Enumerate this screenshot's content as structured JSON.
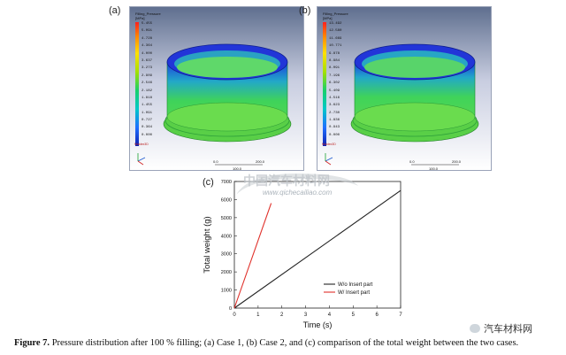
{
  "panels": [
    {
      "label": "(a)",
      "legend_title": "Filling_Pressure",
      "legend_unit": "[MPa]",
      "ticks": [
        "5.455",
        "5.091",
        "4.728",
        "4.364",
        "4.000",
        "3.637",
        "3.273",
        "2.909",
        "2.546",
        "2.182",
        "1.818",
        "1.455",
        "1.091",
        "0.727",
        "0.364",
        "0.000"
      ],
      "scale_left": "0.0",
      "scale_right": "200.0",
      "scale_mid": "100.0",
      "mold_note": "Moldex3D"
    },
    {
      "label": "(b)",
      "legend_title": "Filling_Pressure",
      "legend_unit": "[MPa]",
      "ticks": [
        "13.492",
        "12.580",
        "11.669",
        "10.771",
        "9.878",
        "8.984",
        "8.091",
        "7.196",
        "6.302",
        "5.409",
        "4.516",
        "3.623",
        "2.730",
        "1.836",
        "0.943",
        "0.000"
      ],
      "scale_left": "0.0",
      "scale_right": "200.0",
      "scale_mid": "100.0",
      "mold_note": "Moldex3D"
    }
  ],
  "chart_label": "(c)",
  "chart_data": {
    "type": "line",
    "xlabel": "Time (s)",
    "ylabel": "Total weight (g)",
    "xlim": [
      0,
      7
    ],
    "ylim": [
      0,
      7000
    ],
    "x_ticks": [
      "0",
      "1",
      "2",
      "3",
      "4",
      "5",
      "6",
      "7"
    ],
    "y_ticks": [
      "0",
      "1000",
      "2000",
      "3000",
      "4000",
      "5000",
      "6000",
      "7000"
    ],
    "legend_position": "bottom-right",
    "series": [
      {
        "name": "W/o Insert part",
        "color": "#222222",
        "x": [
          0,
          7
        ],
        "y": [
          0,
          6500
        ]
      },
      {
        "name": "W/  Insert part",
        "color": "#e0302a",
        "x": [
          0,
          1.55
        ],
        "y": [
          0,
          5800
        ]
      }
    ]
  },
  "caption": {
    "bold": "Figure 7.",
    "text": " Pressure distribution after 100 % filling; (a) Case 1, (b) Case 2, and (c) comparison of the total weight between the two cases."
  },
  "watermark": {
    "cn": "中国汽车材料网",
    "url": "www.qichecailiao.com"
  },
  "brand": "汽车材料网",
  "colors": {
    "series_black": "#222222",
    "series_red": "#e0302a",
    "ring_green": "#3fcf58",
    "ring_blue": "#1f3fd8"
  }
}
